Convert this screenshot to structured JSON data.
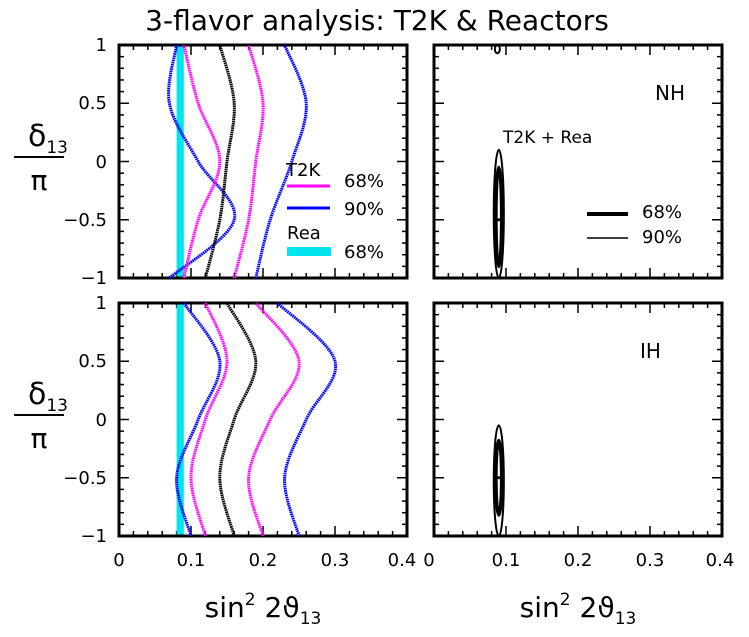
{
  "title": "3-flavor analysis:  T2K  &  Reactors",
  "y_axis_label": {
    "numerator": "δ",
    "subscript": "13",
    "denominator": "π"
  },
  "x_axis_label": {
    "base": "sin",
    "sup": "2",
    "rest": " 2ϑ",
    "sub": "13"
  },
  "x_tick_labels_left": [
    "0",
    "0.1",
    "0.2",
    "0.3",
    "0.4"
  ],
  "x_tick_labels_right": [
    "0",
    "0.1",
    "0.2",
    "0.3",
    "0.4"
  ],
  "y_tick_labels": [
    "1",
    "0.5",
    "0",
    "−0.5",
    "−1"
  ],
  "legend_left": {
    "t2k_label": "T2K",
    "t2k_68": "68%",
    "t2k_90": "90%",
    "rea_label": "Rea",
    "rea_68": "68%"
  },
  "legend_right": {
    "combo_label": "T2K + Rea",
    "thick_68": "68%",
    "thin_90": "90%"
  },
  "colors": {
    "t2k_68": "#ff00ff",
    "t2k_90": "#0000ff",
    "best_fit": "#000000",
    "reactor": "#00e5ee"
  },
  "chart_data": [
    {
      "type": "line",
      "panel": "top-left",
      "title": "",
      "xlabel": "sin² 2ϑ13",
      "ylabel": "δ13/π",
      "xlim": [
        0,
        0.4
      ],
      "ylim": [
        -1,
        1
      ],
      "reactor_band": {
        "name": "Rea 68%",
        "x_range": [
          0.08,
          0.09
        ]
      },
      "series": [
        {
          "name": "T2K 90%",
          "points": [
            [
              0.07,
              -1
            ],
            [
              0.16,
              -0.5
            ],
            [
              0.11,
              0
            ],
            [
              0.07,
              0.5
            ],
            [
              0.08,
              1
            ]
          ]
        },
        {
          "name": "T2K 68%",
          "points": [
            [
              0.09,
              -1
            ],
            [
              0.11,
              -0.5
            ],
            [
              0.14,
              0
            ],
            [
              0.11,
              0.5
            ],
            [
              0.09,
              1
            ]
          ]
        },
        {
          "name": "",
          "points": [
            [
              0.12,
              -1
            ],
            [
              0.14,
              -0.5
            ],
            [
              0.15,
              0
            ],
            [
              0.16,
              0.5
            ],
            [
              0.14,
              1
            ]
          ]
        },
        {
          "name": "T2K 68%",
          "points": [
            [
              0.16,
              -1
            ],
            [
              0.18,
              -0.5
            ],
            [
              0.19,
              0
            ],
            [
              0.2,
              0.5
            ],
            [
              0.18,
              1
            ]
          ]
        },
        {
          "name": "T2K 90%",
          "points": [
            [
              0.19,
              -1
            ],
            [
              0.21,
              -0.5
            ],
            [
              0.24,
              0
            ],
            [
              0.26,
              0.5
            ],
            [
              0.23,
              1
            ]
          ]
        }
      ]
    },
    {
      "type": "line",
      "panel": "top-right",
      "title": "",
      "xlabel": "sin² 2ϑ13",
      "xlim": [
        0,
        0.4
      ],
      "ylim": [
        -1,
        1
      ],
      "annotation": "NH",
      "contours": [
        {
          "name": "90%",
          "x_center": 0.09,
          "x_halfwidth": 0.007,
          "y_range": [
            -1,
            0.1
          ]
        },
        {
          "name": "68%",
          "x_center": 0.09,
          "x_halfwidth": 0.004,
          "y_range": [
            -0.9,
            -0.05
          ]
        }
      ],
      "best_fit_point": [
        0.09,
        -0.5
      ],
      "top_island": {
        "x_center": 0.088,
        "y_range": [
          0.93,
          1
        ]
      }
    },
    {
      "type": "line",
      "panel": "bottom-left",
      "title": "",
      "xlabel": "sin² 2ϑ13",
      "ylabel": "δ13/π",
      "xlim": [
        0,
        0.4
      ],
      "ylim": [
        -1,
        1
      ],
      "reactor_band": {
        "name": "Rea 68%",
        "x_range": [
          0.08,
          0.09
        ]
      },
      "series": [
        {
          "name": "T2K 90%",
          "points": [
            [
              0.1,
              -1
            ],
            [
              0.08,
              -0.5
            ],
            [
              0.11,
              0
            ],
            [
              0.14,
              0.5
            ],
            [
              0.09,
              1
            ]
          ]
        },
        {
          "name": "T2K 68%",
          "points": [
            [
              0.12,
              -1
            ],
            [
              0.1,
              -0.5
            ],
            [
              0.12,
              0
            ],
            [
              0.15,
              0.5
            ],
            [
              0.12,
              1
            ]
          ]
        },
        {
          "name": "",
          "points": [
            [
              0.16,
              -1
            ],
            [
              0.14,
              -0.5
            ],
            [
              0.16,
              0
            ],
            [
              0.19,
              0.5
            ],
            [
              0.15,
              1
            ]
          ]
        },
        {
          "name": "T2K 68%",
          "points": [
            [
              0.2,
              -1
            ],
            [
              0.18,
              -0.5
            ],
            [
              0.21,
              0
            ],
            [
              0.25,
              0.5
            ],
            [
              0.19,
              1
            ]
          ]
        },
        {
          "name": "T2K 90%",
          "points": [
            [
              0.25,
              -1
            ],
            [
              0.23,
              -0.5
            ],
            [
              0.26,
              0
            ],
            [
              0.3,
              0.5
            ],
            [
              0.22,
              1
            ]
          ]
        }
      ]
    },
    {
      "type": "line",
      "panel": "bottom-right",
      "title": "",
      "xlabel": "sin² 2ϑ13",
      "xlim": [
        0,
        0.4
      ],
      "ylim": [
        -1,
        1
      ],
      "annotation": "IH",
      "contours": [
        {
          "name": "90%",
          "x_center": 0.09,
          "x_halfwidth": 0.007,
          "y_range": [
            -1,
            -0.05
          ]
        },
        {
          "name": "68%",
          "x_center": 0.09,
          "x_halfwidth": 0.004,
          "y_range": [
            -0.82,
            -0.18
          ]
        }
      ],
      "best_fit_point": [
        0.09,
        -0.5
      ]
    }
  ]
}
